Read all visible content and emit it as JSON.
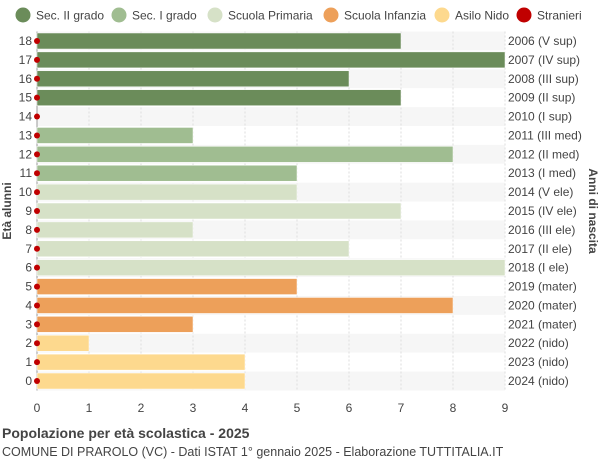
{
  "chart_data": {
    "type": "bar",
    "orientation": "horizontal",
    "title": "Popolazione per età scolastica - 2025",
    "subtitle": "COMUNE DI PRAROLO (VC) - Dati ISTAT 1° gennaio 2025 - Elaborazione TUTTITALIA.IT",
    "ylabel": "Età alunni",
    "ylabel_right": "Anni di nascita",
    "xlim": [
      0,
      9
    ],
    "xticks": [
      0,
      1,
      2,
      3,
      4,
      5,
      6,
      7,
      8,
      9
    ],
    "grid": true,
    "legend_position": "top",
    "legend": [
      {
        "name": "Sec. II grado",
        "color": "#6b8c5a"
      },
      {
        "name": "Sec. I grado",
        "color": "#a0bd91"
      },
      {
        "name": "Scuola Primaria",
        "color": "#d6e1c7"
      },
      {
        "name": "Scuola Infanzia",
        "color": "#eda05a"
      },
      {
        "name": "Asilo Nido",
        "color": "#fdd98e"
      },
      {
        "name": "Stranieri",
        "color": "#c00000"
      }
    ],
    "rows": [
      {
        "age": "18",
        "year": "2006 (V sup)",
        "value": 7,
        "group": 0,
        "stranieri": 0
      },
      {
        "age": "17",
        "year": "2007 (IV sup)",
        "value": 9,
        "group": 0,
        "stranieri": 0
      },
      {
        "age": "16",
        "year": "2008 (III sup)",
        "value": 6,
        "group": 0,
        "stranieri": 0
      },
      {
        "age": "15",
        "year": "2009 (II sup)",
        "value": 7,
        "group": 0,
        "stranieri": 0
      },
      {
        "age": "14",
        "year": "2010 (I sup)",
        "value": 0,
        "group": 0,
        "stranieri": 0
      },
      {
        "age": "13",
        "year": "2011 (III med)",
        "value": 3,
        "group": 1,
        "stranieri": 0
      },
      {
        "age": "12",
        "year": "2012 (II med)",
        "value": 8,
        "group": 1,
        "stranieri": 0
      },
      {
        "age": "11",
        "year": "2013 (I med)",
        "value": 5,
        "group": 1,
        "stranieri": 0
      },
      {
        "age": "10",
        "year": "2014 (V ele)",
        "value": 5,
        "group": 2,
        "stranieri": 0
      },
      {
        "age": "9",
        "year": "2015 (IV ele)",
        "value": 7,
        "group": 2,
        "stranieri": 0
      },
      {
        "age": "8",
        "year": "2016 (III ele)",
        "value": 3,
        "group": 2,
        "stranieri": 0
      },
      {
        "age": "7",
        "year": "2017 (II ele)",
        "value": 6,
        "group": 2,
        "stranieri": 0
      },
      {
        "age": "6",
        "year": "2018 (I ele)",
        "value": 9,
        "group": 2,
        "stranieri": 0
      },
      {
        "age": "5",
        "year": "2019 (mater)",
        "value": 5,
        "group": 3,
        "stranieri": 0
      },
      {
        "age": "4",
        "year": "2020 (mater)",
        "value": 8,
        "group": 3,
        "stranieri": 0
      },
      {
        "age": "3",
        "year": "2021 (mater)",
        "value": 3,
        "group": 3,
        "stranieri": 0
      },
      {
        "age": "2",
        "year": "2022 (nido)",
        "value": 1,
        "group": 4,
        "stranieri": 0
      },
      {
        "age": "1",
        "year": "2023 (nido)",
        "value": 4,
        "group": 4,
        "stranieri": 0
      },
      {
        "age": "0",
        "year": "2024 (nido)",
        "value": 4,
        "group": 4,
        "stranieri": 0
      }
    ]
  }
}
